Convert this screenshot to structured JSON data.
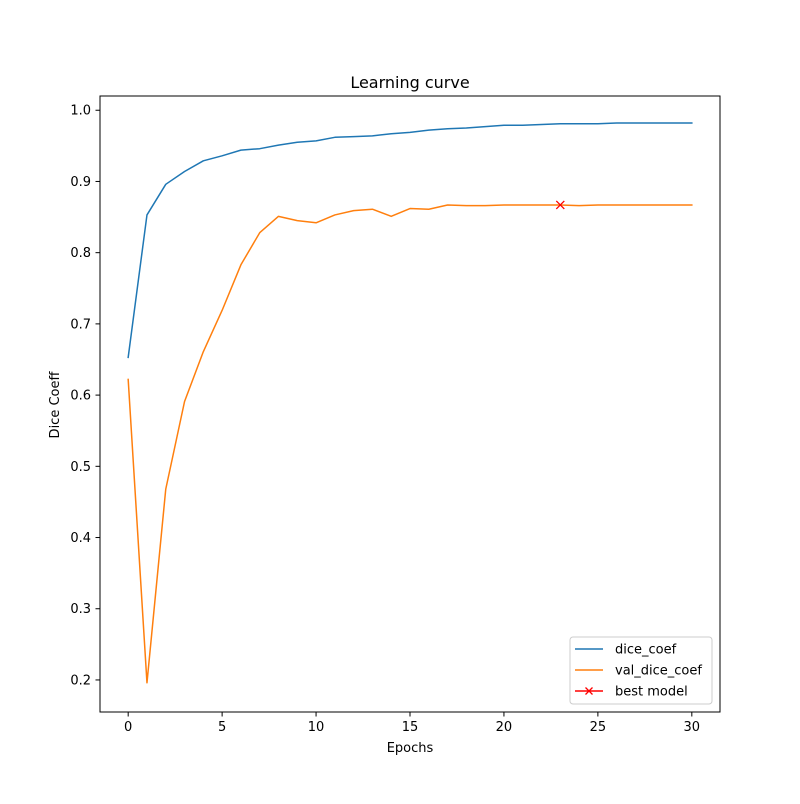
{
  "chart_data": {
    "type": "line",
    "title": "Learning curve",
    "xlabel": "Epochs",
    "ylabel": "Dice Coeff",
    "xlim": [
      -1.5,
      31.5
    ],
    "ylim": [
      0.155,
      1.02
    ],
    "xticks": [
      0,
      5,
      10,
      15,
      20,
      25,
      30
    ],
    "yticks": [
      0.2,
      0.3,
      0.4,
      0.5,
      0.6,
      0.7,
      0.8,
      0.9,
      1.0
    ],
    "ytick_labels": [
      "0.2",
      "0.3",
      "0.4",
      "0.5",
      "0.6",
      "0.7",
      "0.8",
      "0.9",
      "1.0"
    ],
    "grid": false,
    "legend_position": "lower-right",
    "x": [
      0,
      1,
      2,
      3,
      4,
      5,
      6,
      7,
      8,
      9,
      10,
      11,
      12,
      13,
      14,
      15,
      16,
      17,
      18,
      19,
      20,
      21,
      22,
      23,
      24,
      25,
      26,
      27,
      28,
      29,
      30
    ],
    "series": [
      {
        "name": "dice_coef",
        "color": "#1f77b4",
        "values": [
          0.653,
          0.853,
          0.896,
          0.914,
          0.929,
          0.936,
          0.944,
          0.946,
          0.951,
          0.955,
          0.957,
          0.962,
          0.963,
          0.964,
          0.967,
          0.969,
          0.972,
          0.974,
          0.975,
          0.977,
          0.979,
          0.979,
          0.98,
          0.981,
          0.981,
          0.981,
          0.982,
          0.982,
          0.982,
          0.982,
          0.982
        ]
      },
      {
        "name": "val_dice_coef",
        "color": "#ff7f0e",
        "values": [
          0.622,
          0.196,
          0.468,
          0.591,
          0.661,
          0.719,
          0.783,
          0.828,
          0.851,
          0.845,
          0.842,
          0.853,
          0.859,
          0.861,
          0.851,
          0.862,
          0.861,
          0.867,
          0.866,
          0.866,
          0.867,
          0.867,
          0.867,
          0.867,
          0.866,
          0.867,
          0.867,
          0.867,
          0.867,
          0.867,
          0.867
        ]
      }
    ],
    "markers": [
      {
        "name": "best model",
        "color": "#ff0000",
        "symbol": "x",
        "x": 23,
        "y": 0.867
      }
    ]
  }
}
